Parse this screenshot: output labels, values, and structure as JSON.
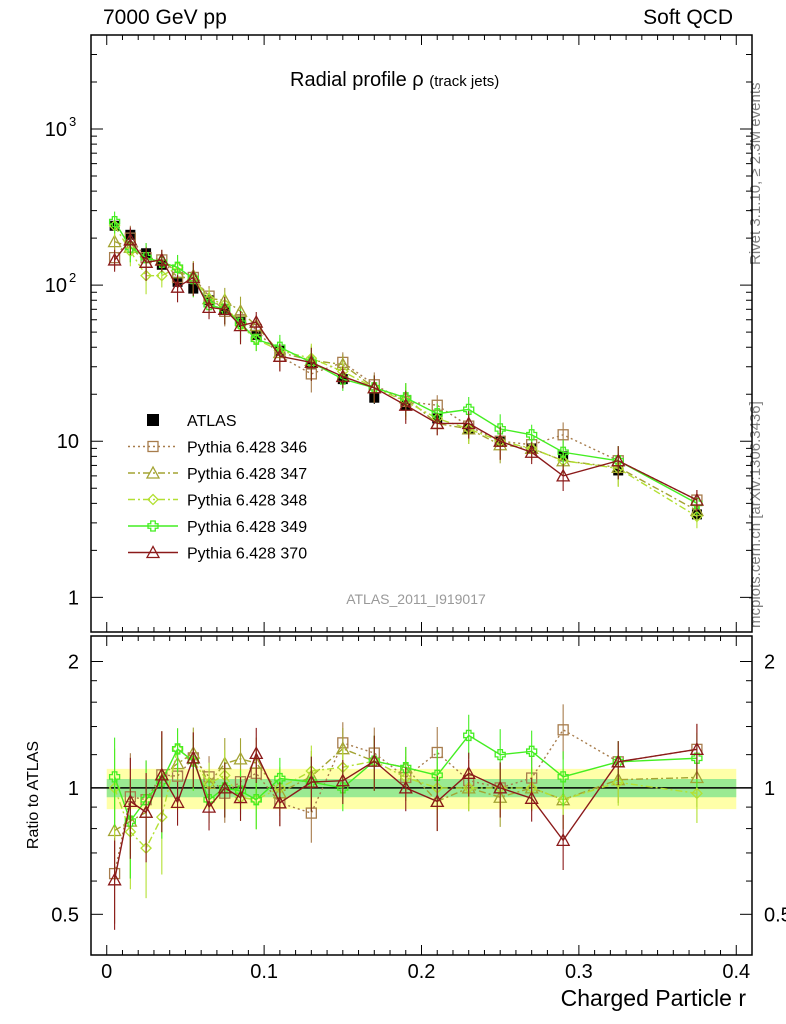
{
  "header": {
    "left": "7000 GeV pp",
    "right": "Soft QCD"
  },
  "side_labels": {
    "rivet": "Rivet 3.1.10, ≥ 2.3M events",
    "mcplots": "mcplots.cern.ch [arXiv:1306.3436]"
  },
  "chart_data": {
    "type": "line",
    "title_main": "Radial profile",
    "title_symbol": "ρ",
    "title_sub": "(track jets)",
    "analysis_id": "ATLAS_2011_I919017",
    "xlabel": "Charged Particle r",
    "ratio_ylabel": "Ratio to ATLAS",
    "xlim": [
      -0.01,
      0.41
    ],
    "ylim_main": [
      0.6,
      4000
    ],
    "ylim_ratio": [
      0.4,
      2.3
    ],
    "x_ticks": [
      "0",
      "0.1",
      "0.2",
      "0.3",
      "0.4"
    ],
    "y_ticks_main": [
      "1",
      "10"
    ],
    "y_ticks_main_exp": [
      "10",
      "10"
    ],
    "y_ticks_main_exp_power": [
      "2",
      "3"
    ],
    "y_ticks_ratio": [
      "0.5",
      "1",
      "2"
    ],
    "x": [
      0.005,
      0.015,
      0.025,
      0.035,
      0.045,
      0.055,
      0.065,
      0.075,
      0.085,
      0.095,
      0.11,
      0.13,
      0.15,
      0.17,
      0.19,
      0.21,
      0.23,
      0.25,
      0.27,
      0.29,
      0.325,
      0.375
    ],
    "series": [
      {
        "name": "ATLAS",
        "color": "#000000",
        "style": "data",
        "values": [
          240,
          210,
          160,
          135,
          105,
          95,
          80,
          70,
          58,
          48,
          38,
          31,
          25,
          19,
          17,
          14,
          12,
          10,
          9,
          8,
          6.5,
          3.4
        ]
      },
      {
        "name": "Pythia 6.428 346",
        "color": "#a77c4c",
        "style": "dotted",
        "marker": "square-open",
        "values": [
          150,
          200,
          150,
          145,
          112,
          112,
          85,
          68,
          60,
          52,
          35,
          27,
          32,
          23,
          18,
          17,
          12.5,
          10,
          9.5,
          11,
          7.5,
          4.2
        ]
      },
      {
        "name": "Pythia 6.428 347",
        "color": "#a3a332",
        "style": "dashdot",
        "marker": "triangle-open",
        "values": [
          190,
          175,
          140,
          145,
          120,
          115,
          82,
          80,
          68,
          55,
          37,
          33,
          31,
          22,
          19,
          13,
          12,
          9.5,
          9,
          7.5,
          6.8,
          3.6
        ]
      },
      {
        "name": "Pythia 6.428 348",
        "color": "#b3e033",
        "style": "dashdot",
        "marker": "diamond-open",
        "values": [
          240,
          165,
          115,
          115,
          130,
          110,
          82,
          75,
          55,
          45,
          38,
          34,
          28,
          22,
          18,
          14,
          12,
          10,
          9,
          7.5,
          6.7,
          3.3
        ]
      },
      {
        "name": "Pythia 6.428 349",
        "color": "#44ee22",
        "style": "solid",
        "marker": "cross-open",
        "values": [
          255,
          175,
          150,
          140,
          130,
          110,
          75,
          70,
          57,
          45,
          40,
          32,
          25,
          22,
          19,
          15,
          16,
          12,
          11,
          8.5,
          7.5,
          4.0
        ]
      },
      {
        "name": "Pythia 6.428 370",
        "color": "#8b1a1a",
        "style": "solid",
        "marker": "triangle-open",
        "values": [
          145,
          195,
          140,
          145,
          97,
          112,
          72,
          70,
          55,
          58,
          35,
          32,
          26,
          22,
          17,
          13,
          13,
          10,
          8.5,
          6,
          7.5,
          4.2
        ]
      }
    ]
  }
}
